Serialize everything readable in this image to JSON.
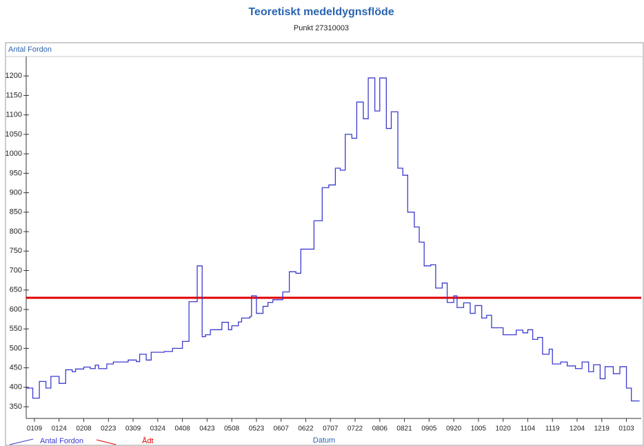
{
  "chart_data": {
    "type": "line",
    "title": "Teoretiskt medeldygnsflöde",
    "subtitle": "Punkt 27310003",
    "y_axis_label": "Antal Fordon",
    "x_axis_label": "Datum",
    "drawstyle": "steps-post",
    "x": [
      4,
      8,
      12,
      16,
      19,
      24,
      28,
      32,
      34,
      39,
      43,
      46,
      48,
      53,
      57,
      66,
      71,
      73,
      77,
      80,
      88,
      93,
      99,
      103,
      108,
      111,
      113,
      116,
      123,
      127,
      129,
      133,
      135,
      140,
      141,
      144,
      148,
      151,
      154,
      160,
      164,
      168,
      171,
      179,
      184,
      188,
      192,
      195,
      198,
      202,
      205,
      209,
      212,
      216,
      219,
      223,
      226,
      230,
      233,
      236,
      240,
      243,
      246,
      250,
      253,
      257,
      260,
      264,
      266,
      270,
      274,
      277,
      281,
      284,
      287,
      294,
      302,
      306,
      309,
      312,
      315,
      318,
      322,
      324,
      329,
      333,
      338,
      342,
      346,
      349,
      353,
      356,
      361,
      365,
      369,
      372,
      377
    ],
    "series": [
      {
        "name": "Antal Fordon",
        "color": "#3a3ad0",
        "values": [
          398,
          372,
          415,
          398,
          428,
          410,
          445,
          440,
          447,
          452,
          448,
          457,
          448,
          460,
          465,
          470,
          466,
          485,
          470,
          490,
          492,
          500,
          518,
          620,
          712,
          530,
          535,
          548,
          567,
          548,
          558,
          568,
          578,
          582,
          635,
          590,
          608,
          618,
          625,
          645,
          697,
          693,
          755,
          828,
          913,
          920,
          963,
          958,
          1050,
          1040,
          1133,
          1090,
          1195,
          1110,
          1195,
          1065,
          1108,
          963,
          945,
          850,
          812,
          773,
          712,
          715,
          655,
          668,
          618,
          635,
          605,
          617,
          590,
          610,
          578,
          585,
          553,
          535,
          547,
          540,
          548,
          523,
          528,
          485,
          498,
          460,
          465,
          455,
          448,
          465,
          440,
          458,
          422,
          453,
          435,
          453,
          398,
          365,
          365
        ]
      }
    ],
    "reference_lines": [
      {
        "name": "Ådt",
        "color": "#e00000",
        "value": 630
      }
    ],
    "xlim": [
      4,
      378
    ],
    "xticks": [
      {
        "value": 9,
        "label": "0109"
      },
      {
        "value": 24,
        "label": "0124"
      },
      {
        "value": 39,
        "label": "0208"
      },
      {
        "value": 54,
        "label": "0223"
      },
      {
        "value": 69,
        "label": "0309"
      },
      {
        "value": 84,
        "label": "0324"
      },
      {
        "value": 99,
        "label": "0408"
      },
      {
        "value": 114,
        "label": "0423"
      },
      {
        "value": 129,
        "label": "0508"
      },
      {
        "value": 144,
        "label": "0523"
      },
      {
        "value": 159,
        "label": "0607"
      },
      {
        "value": 174,
        "label": "0622"
      },
      {
        "value": 189,
        "label": "0707"
      },
      {
        "value": 204,
        "label": "0722"
      },
      {
        "value": 219,
        "label": "0806"
      },
      {
        "value": 234,
        "label": "0821"
      },
      {
        "value": 249,
        "label": "0905"
      },
      {
        "value": 264,
        "label": "0920"
      },
      {
        "value": 279,
        "label": "1005"
      },
      {
        "value": 294,
        "label": "1020"
      },
      {
        "value": 309,
        "label": "1104"
      },
      {
        "value": 324,
        "label": "1119"
      },
      {
        "value": 339,
        "label": "1204"
      },
      {
        "value": 354,
        "label": "1219"
      },
      {
        "value": 369,
        "label": "0103"
      }
    ],
    "ylim": [
      320,
      1250
    ],
    "yticks": [
      350,
      400,
      450,
      500,
      550,
      600,
      650,
      700,
      750,
      800,
      850,
      900,
      950,
      1000,
      1050,
      1100,
      1150,
      1200
    ]
  }
}
